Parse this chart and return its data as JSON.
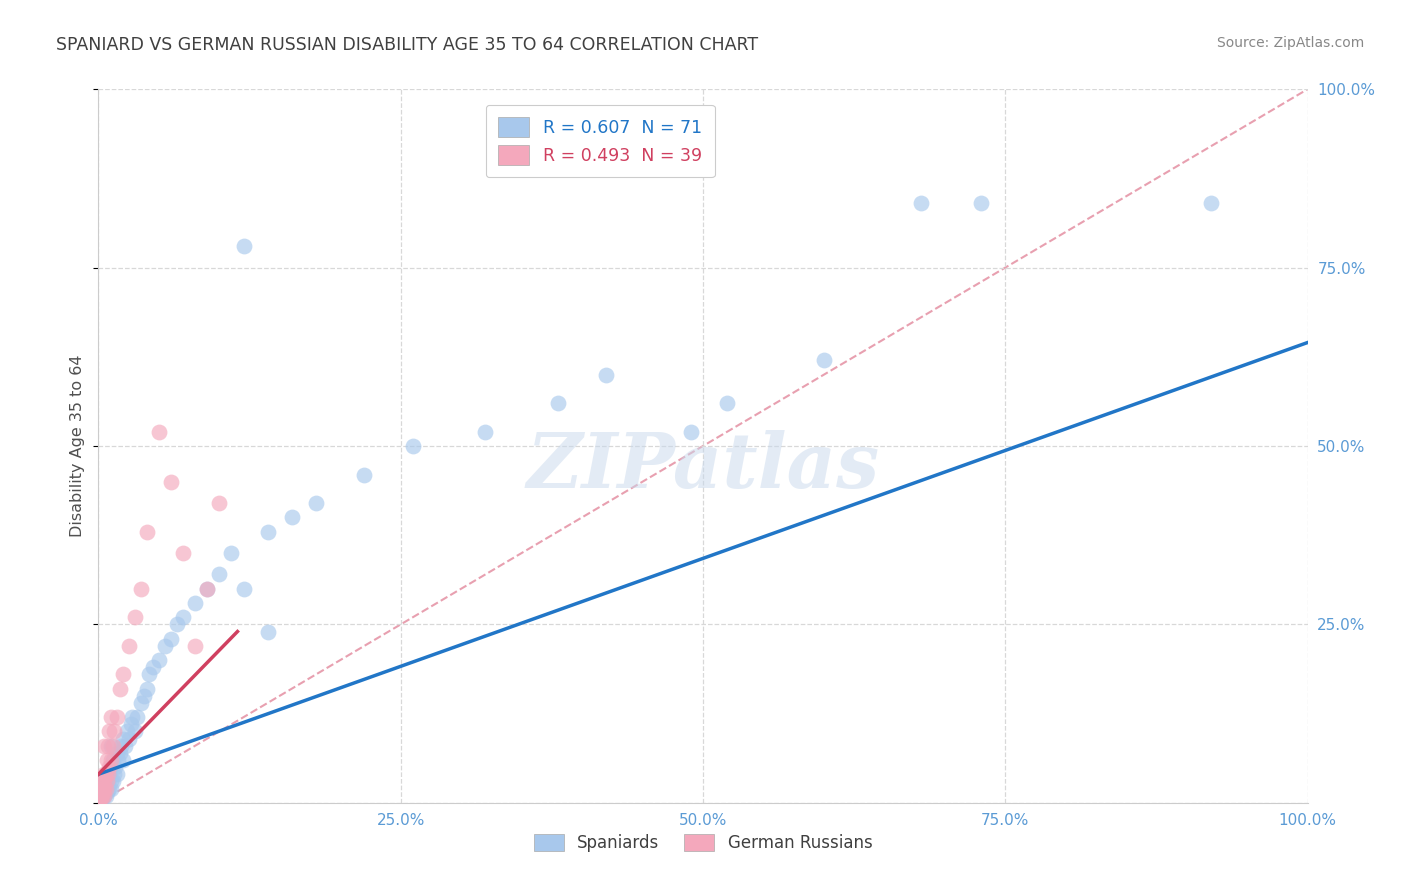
{
  "title": "SPANIARD VS GERMAN RUSSIAN DISABILITY AGE 35 TO 64 CORRELATION CHART",
  "source_text": "Source: ZipAtlas.com",
  "ylabel": "Disability Age 35 to 64",
  "r_spaniard": 0.607,
  "n_spaniard": 71,
  "r_german_russian": 0.493,
  "n_german_russian": 39,
  "spaniard_color": "#A8C8EC",
  "german_russian_color": "#F4A8BC",
  "spaniard_line_color": "#2176C7",
  "german_russian_line_color": "#D04060",
  "diagonal_color": "#E8A0B0",
  "background_color": "#FFFFFF",
  "grid_color": "#D8D8D8",
  "xlim": [
    0,
    1.0
  ],
  "ylim": [
    0,
    1.0
  ],
  "xticks": [
    0.0,
    0.25,
    0.5,
    0.75,
    1.0
  ],
  "yticks": [
    0.0,
    0.25,
    0.5,
    0.75,
    1.0
  ],
  "xtick_labels": [
    "0.0%",
    "25.0%",
    "50.0%",
    "75.0%",
    "100.0%"
  ],
  "ytick_labels": [
    "",
    "25.0%",
    "50.0%",
    "75.0%",
    "100.0%"
  ],
  "legend_labels": [
    "Spaniards",
    "German Russians"
  ],
  "legend_r_label_1": "R = 0.607  N = 71",
  "legend_r_label_2": "R = 0.493  N = 39",
  "watermark": "ZIPatlas",
  "title_color": "#404040",
  "axis_label_color": "#505050",
  "tick_color": "#5B9BD5",
  "source_color": "#888888",
  "sp_trend_x0": 0.0,
  "sp_trend_y0": 0.04,
  "sp_trend_x1": 1.0,
  "sp_trend_y1": 0.645,
  "gr_trend_x0": 0.0,
  "gr_trend_y0": 0.04,
  "gr_trend_x1": 0.115,
  "gr_trend_y1": 0.24,
  "spaniard_x": [
    0.002,
    0.003,
    0.003,
    0.004,
    0.004,
    0.005,
    0.005,
    0.005,
    0.006,
    0.006,
    0.006,
    0.007,
    0.007,
    0.007,
    0.008,
    0.008,
    0.009,
    0.009,
    0.01,
    0.01,
    0.01,
    0.01,
    0.012,
    0.012,
    0.013,
    0.014,
    0.015,
    0.015,
    0.016,
    0.018,
    0.019,
    0.02,
    0.02,
    0.022,
    0.024,
    0.025,
    0.027,
    0.028,
    0.03,
    0.032,
    0.035,
    0.038,
    0.04,
    0.042,
    0.045,
    0.05,
    0.055,
    0.06,
    0.065,
    0.07,
    0.08,
    0.09,
    0.1,
    0.11,
    0.12,
    0.14,
    0.16,
    0.18,
    0.22,
    0.26,
    0.32,
    0.38,
    0.42,
    0.49,
    0.52,
    0.6,
    0.68,
    0.73,
    0.92,
    0.12,
    0.14
  ],
  "spaniard_y": [
    0.005,
    0.008,
    0.01,
    0.01,
    0.015,
    0.01,
    0.02,
    0.025,
    0.01,
    0.02,
    0.03,
    0.015,
    0.025,
    0.035,
    0.02,
    0.03,
    0.02,
    0.04,
    0.02,
    0.03,
    0.05,
    0.08,
    0.03,
    0.06,
    0.04,
    0.05,
    0.04,
    0.07,
    0.06,
    0.07,
    0.08,
    0.06,
    0.09,
    0.08,
    0.1,
    0.09,
    0.11,
    0.12,
    0.1,
    0.12,
    0.14,
    0.15,
    0.16,
    0.18,
    0.19,
    0.2,
    0.22,
    0.23,
    0.25,
    0.26,
    0.28,
    0.3,
    0.32,
    0.35,
    0.78,
    0.38,
    0.4,
    0.42,
    0.46,
    0.5,
    0.52,
    0.56,
    0.6,
    0.52,
    0.56,
    0.62,
    0.84,
    0.84,
    0.84,
    0.3,
    0.24
  ],
  "german_russian_x": [
    0.001,
    0.002,
    0.002,
    0.003,
    0.003,
    0.003,
    0.004,
    0.004,
    0.004,
    0.005,
    0.005,
    0.005,
    0.005,
    0.005,
    0.006,
    0.006,
    0.007,
    0.007,
    0.008,
    0.008,
    0.009,
    0.009,
    0.01,
    0.01,
    0.012,
    0.013,
    0.015,
    0.018,
    0.02,
    0.025,
    0.03,
    0.035,
    0.04,
    0.05,
    0.06,
    0.07,
    0.08,
    0.09,
    0.1
  ],
  "german_russian_y": [
    0.005,
    0.008,
    0.01,
    0.01,
    0.015,
    0.025,
    0.015,
    0.02,
    0.03,
    0.01,
    0.02,
    0.03,
    0.04,
    0.08,
    0.02,
    0.04,
    0.03,
    0.06,
    0.04,
    0.08,
    0.05,
    0.1,
    0.06,
    0.12,
    0.08,
    0.1,
    0.12,
    0.16,
    0.18,
    0.22,
    0.26,
    0.3,
    0.38,
    0.52,
    0.45,
    0.35,
    0.22,
    0.3,
    0.42
  ]
}
